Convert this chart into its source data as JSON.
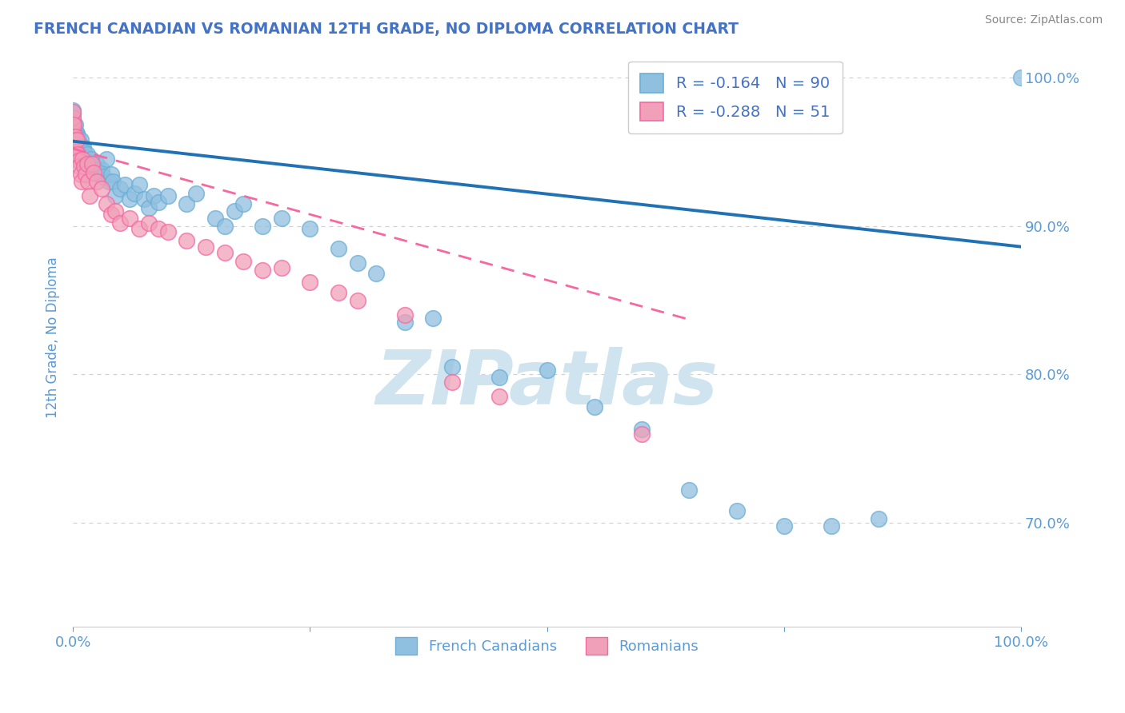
{
  "title": "FRENCH CANADIAN VS ROMANIAN 12TH GRADE, NO DIPLOMA CORRELATION CHART",
  "source_text": "Source: ZipAtlas.com",
  "ylabel": "12th Grade, No Diploma",
  "title_color": "#4472c4",
  "tick_color": "#5b9bd5",
  "watermark_color": "#d0e4f0",
  "background_color": "#ffffff",
  "blue_color": "#90c0e0",
  "pink_color": "#f0a0b8",
  "blue_edge_color": "#6baed6",
  "pink_edge_color": "#f768a1",
  "blue_line_color": "#2171b5",
  "pink_line_color": "#f768a1",
  "grid_color": "#cccccc",
  "y_tick_values": [
    0.7,
    0.8,
    0.9,
    1.0
  ],
  "y_tick_labels": [
    "70.0%",
    "80.0%",
    "90.0%",
    "100.0%"
  ],
  "xlim": [
    0.0,
    1.0
  ],
  "ylim": [
    0.63,
    1.02
  ],
  "figsize": [
    14.06,
    8.92
  ],
  "dpi": 100,
  "blue_line": {
    "x0": 0.0,
    "x1": 1.0,
    "y0": 0.957,
    "y1": 0.886
  },
  "pink_line": {
    "x0": 0.0,
    "x1": 0.65,
    "y0": 0.952,
    "y1": 0.837
  },
  "blue_scatter_x": [
    0.0,
    0.0,
    0.0,
    0.0,
    0.0,
    0.0,
    0.0,
    0.0,
    0.0,
    0.0,
    0.001,
    0.001,
    0.001,
    0.001,
    0.001,
    0.002,
    0.002,
    0.002,
    0.002,
    0.003,
    0.003,
    0.003,
    0.004,
    0.004,
    0.004,
    0.005,
    0.005,
    0.005,
    0.006,
    0.006,
    0.007,
    0.008,
    0.008,
    0.009,
    0.01,
    0.011,
    0.012,
    0.013,
    0.014,
    0.015,
    0.016,
    0.018,
    0.019,
    0.02,
    0.022,
    0.025,
    0.027,
    0.028,
    0.03,
    0.032,
    0.035,
    0.038,
    0.04,
    0.042,
    0.045,
    0.05,
    0.055,
    0.06,
    0.065,
    0.07,
    0.075,
    0.08,
    0.085,
    0.09,
    0.1,
    0.12,
    0.13,
    0.15,
    0.16,
    0.17,
    0.18,
    0.2,
    0.22,
    0.25,
    0.28,
    0.3,
    0.32,
    0.35,
    0.38,
    0.4,
    0.45,
    0.5,
    0.55,
    0.6,
    0.65,
    0.7,
    0.75,
    0.8,
    0.85,
    1.0
  ],
  "blue_scatter_y": [
    0.95,
    0.955,
    0.96,
    0.962,
    0.965,
    0.968,
    0.97,
    0.972,
    0.975,
    0.978,
    0.945,
    0.952,
    0.958,
    0.964,
    0.968,
    0.948,
    0.955,
    0.962,
    0.968,
    0.95,
    0.957,
    0.963,
    0.948,
    0.955,
    0.962,
    0.946,
    0.953,
    0.96,
    0.944,
    0.958,
    0.952,
    0.947,
    0.958,
    0.953,
    0.948,
    0.953,
    0.95,
    0.946,
    0.943,
    0.948,
    0.943,
    0.94,
    0.945,
    0.942,
    0.94,
    0.942,
    0.938,
    0.935,
    0.938,
    0.933,
    0.945,
    0.93,
    0.935,
    0.93,
    0.92,
    0.925,
    0.928,
    0.918,
    0.922,
    0.928,
    0.918,
    0.912,
    0.92,
    0.916,
    0.92,
    0.915,
    0.922,
    0.905,
    0.9,
    0.91,
    0.915,
    0.9,
    0.905,
    0.898,
    0.885,
    0.875,
    0.868,
    0.835,
    0.838,
    0.805,
    0.798,
    0.803,
    0.778,
    0.763,
    0.722,
    0.708,
    0.698,
    0.698,
    0.703,
    1.0
  ],
  "pink_scatter_x": [
    0.0,
    0.0,
    0.0,
    0.0,
    0.0,
    0.0,
    0.001,
    0.001,
    0.001,
    0.002,
    0.002,
    0.003,
    0.004,
    0.004,
    0.005,
    0.006,
    0.007,
    0.008,
    0.009,
    0.01,
    0.012,
    0.013,
    0.015,
    0.016,
    0.018,
    0.02,
    0.022,
    0.025,
    0.03,
    0.035,
    0.04,
    0.045,
    0.05,
    0.06,
    0.07,
    0.08,
    0.09,
    0.1,
    0.12,
    0.14,
    0.16,
    0.18,
    0.2,
    0.22,
    0.25,
    0.28,
    0.3,
    0.35,
    0.4,
    0.45,
    0.6
  ],
  "pink_scatter_y": [
    0.955,
    0.962,
    0.966,
    0.97,
    0.973,
    0.977,
    0.95,
    0.96,
    0.968,
    0.948,
    0.96,
    0.95,
    0.946,
    0.958,
    0.948,
    0.944,
    0.94,
    0.935,
    0.93,
    0.945,
    0.94,
    0.935,
    0.942,
    0.93,
    0.92,
    0.942,
    0.936,
    0.93,
    0.925,
    0.915,
    0.908,
    0.91,
    0.902,
    0.905,
    0.898,
    0.902,
    0.898,
    0.896,
    0.89,
    0.886,
    0.882,
    0.876,
    0.87,
    0.872,
    0.862,
    0.855,
    0.85,
    0.84,
    0.795,
    0.785,
    0.76
  ],
  "legend_r_blue": "-0.164",
  "legend_n_blue": "90",
  "legend_r_pink": "-0.288",
  "legend_n_pink": "51"
}
